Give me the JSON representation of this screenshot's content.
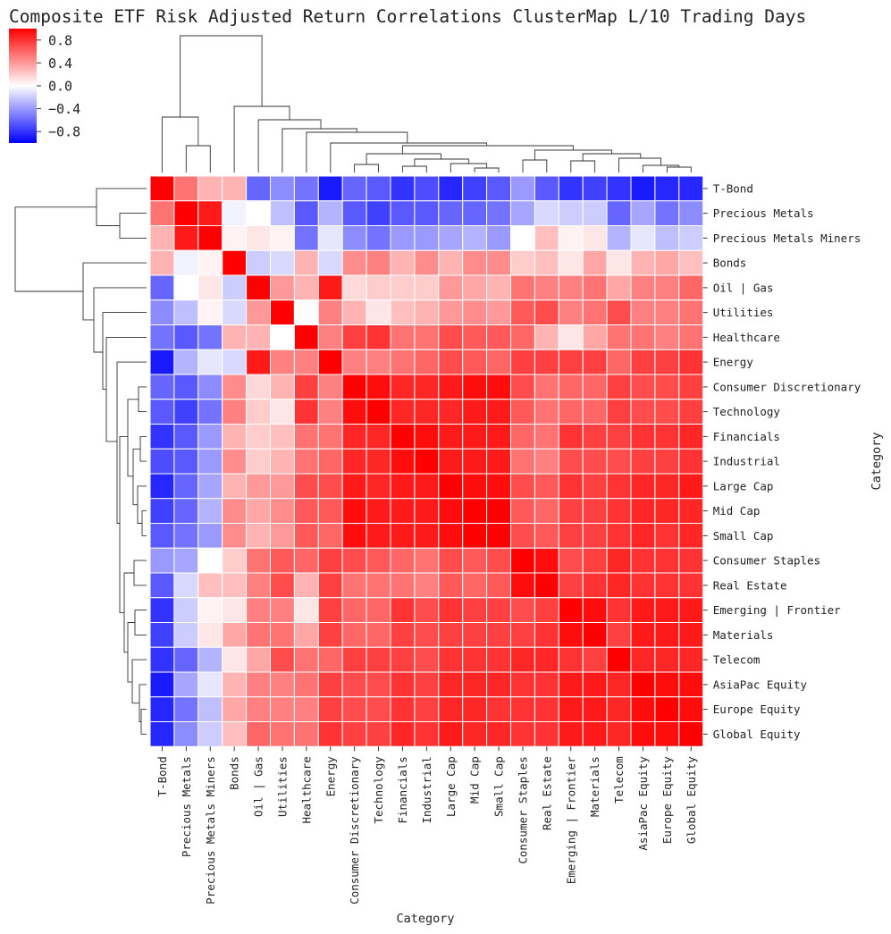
{
  "chart_data": {
    "type": "heatmap",
    "title": "Composite ETF Risk Adjusted Return Correlations ClusterMap L/10 Trading Days",
    "xlabel": "Category",
    "ylabel": "Category",
    "value_range": [
      -1,
      1
    ],
    "colormap": "bwr",
    "colors": {
      "low": "#0000ff",
      "mid": "#ffffff",
      "high": "#ff0000"
    },
    "colorbar_ticks": [
      {
        "value": 0.8,
        "label": "0.8"
      },
      {
        "value": 0.4,
        "label": "0.4"
      },
      {
        "value": 0.0,
        "label": "0.0"
      },
      {
        "value": -0.4,
        "label": "−0.4"
      },
      {
        "value": -0.8,
        "label": "−0.8"
      }
    ],
    "categories": [
      "T-Bond",
      "Precious Metals",
      "Precious Metals Miners",
      "Bonds",
      "Oil | Gas",
      "Utilities",
      "Healthcare",
      "Energy",
      "Consumer Discretionary",
      "Technology",
      "Financials",
      "Industrial",
      "Large Cap",
      "Mid Cap",
      "Small Cap",
      "Consumer Staples",
      "Real Estate",
      "Emerging | Frontier",
      "Materials",
      "Telecom",
      "AsiaPac Equity",
      "Europe Equity",
      "Global Equity"
    ],
    "matrix": [
      [
        1.0,
        0.55,
        0.3,
        0.3,
        -0.6,
        -0.45,
        -0.55,
        -0.9,
        -0.6,
        -0.65,
        -0.8,
        -0.7,
        -0.85,
        -0.75,
        -0.65,
        -0.4,
        -0.65,
        -0.8,
        -0.75,
        -0.8,
        -0.9,
        -0.85,
        -0.85
      ],
      [
        0.55,
        1.0,
        0.9,
        -0.05,
        0.0,
        -0.25,
        -0.65,
        -0.3,
        -0.65,
        -0.75,
        -0.65,
        -0.65,
        -0.6,
        -0.6,
        -0.55,
        -0.35,
        -0.15,
        -0.2,
        -0.2,
        -0.6,
        -0.35,
        -0.55,
        -0.45
      ],
      [
        0.3,
        0.9,
        1.0,
        0.05,
        0.1,
        0.05,
        -0.55,
        -0.1,
        -0.45,
        -0.55,
        -0.4,
        -0.4,
        -0.35,
        -0.3,
        -0.4,
        0.0,
        0.25,
        0.05,
        0.1,
        -0.3,
        -0.1,
        -0.25,
        -0.2
      ],
      [
        0.3,
        -0.05,
        0.05,
        1.0,
        -0.2,
        -0.15,
        0.3,
        -0.15,
        0.45,
        0.5,
        0.3,
        0.45,
        0.3,
        0.45,
        0.45,
        0.2,
        0.25,
        0.1,
        0.35,
        0.1,
        0.3,
        0.35,
        0.25
      ],
      [
        -0.6,
        0.0,
        0.1,
        -0.2,
        1.0,
        0.4,
        0.3,
        0.9,
        0.15,
        0.2,
        0.2,
        0.2,
        0.4,
        0.35,
        0.3,
        0.55,
        0.5,
        0.5,
        0.55,
        0.35,
        0.5,
        0.5,
        0.6
      ],
      [
        -0.45,
        -0.25,
        0.05,
        -0.15,
        0.4,
        1.0,
        0.0,
        0.5,
        0.3,
        0.1,
        0.25,
        0.3,
        0.4,
        0.45,
        0.4,
        0.65,
        0.7,
        0.5,
        0.55,
        0.7,
        0.5,
        0.5,
        0.55
      ],
      [
        -0.55,
        -0.65,
        -0.55,
        0.3,
        0.3,
        0.0,
        1.0,
        0.5,
        0.75,
        0.8,
        0.55,
        0.55,
        0.7,
        0.65,
        0.65,
        0.6,
        0.3,
        0.1,
        0.35,
        0.55,
        0.55,
        0.5,
        0.55
      ],
      [
        -0.9,
        -0.3,
        -0.1,
        -0.15,
        0.9,
        0.5,
        0.5,
        1.0,
        0.5,
        0.5,
        0.55,
        0.6,
        0.7,
        0.65,
        0.6,
        0.75,
        0.75,
        0.75,
        0.75,
        0.6,
        0.75,
        0.75,
        0.8
      ],
      [
        -0.6,
        -0.65,
        -0.45,
        0.45,
        0.15,
        0.3,
        0.75,
        0.5,
        1.0,
        0.95,
        0.85,
        0.85,
        0.9,
        0.95,
        0.95,
        0.7,
        0.55,
        0.6,
        0.6,
        0.75,
        0.7,
        0.7,
        0.75
      ],
      [
        -0.65,
        -0.75,
        -0.55,
        0.5,
        0.2,
        0.1,
        0.8,
        0.5,
        0.95,
        1.0,
        0.85,
        0.85,
        0.85,
        0.9,
        0.9,
        0.65,
        0.55,
        0.6,
        0.6,
        0.75,
        0.7,
        0.7,
        0.75
      ],
      [
        -0.8,
        -0.65,
        -0.4,
        0.3,
        0.2,
        0.25,
        0.55,
        0.55,
        0.85,
        0.85,
        1.0,
        0.95,
        0.9,
        0.9,
        0.9,
        0.6,
        0.55,
        0.8,
        0.75,
        0.75,
        0.8,
        0.8,
        0.85
      ],
      [
        -0.7,
        -0.65,
        -0.4,
        0.45,
        0.2,
        0.3,
        0.55,
        0.6,
        0.85,
        0.85,
        0.95,
        1.0,
        0.9,
        0.9,
        0.9,
        0.55,
        0.5,
        0.7,
        0.7,
        0.7,
        0.75,
        0.75,
        0.8
      ],
      [
        -0.85,
        -0.6,
        -0.35,
        0.3,
        0.4,
        0.4,
        0.7,
        0.7,
        0.9,
        0.85,
        0.9,
        0.9,
        1.0,
        0.95,
        0.95,
        0.7,
        0.65,
        0.8,
        0.75,
        0.8,
        0.85,
        0.85,
        0.9
      ],
      [
        -0.75,
        -0.6,
        -0.3,
        0.45,
        0.35,
        0.45,
        0.65,
        0.65,
        0.95,
        0.9,
        0.9,
        0.9,
        0.95,
        1.0,
        1.0,
        0.65,
        0.6,
        0.75,
        0.75,
        0.8,
        0.85,
        0.85,
        0.85
      ],
      [
        -0.65,
        -0.55,
        -0.4,
        0.45,
        0.3,
        0.4,
        0.65,
        0.6,
        0.95,
        0.9,
        0.9,
        0.9,
        0.95,
        1.0,
        1.0,
        0.7,
        0.65,
        0.75,
        0.75,
        0.8,
        0.85,
        0.8,
        0.85
      ],
      [
        -0.4,
        -0.35,
        0.0,
        0.2,
        0.55,
        0.65,
        0.6,
        0.75,
        0.7,
        0.65,
        0.6,
        0.55,
        0.7,
        0.65,
        0.7,
        1.0,
        0.95,
        0.7,
        0.75,
        0.85,
        0.8,
        0.8,
        0.8
      ],
      [
        -0.65,
        -0.15,
        0.25,
        0.25,
        0.5,
        0.7,
        0.3,
        0.75,
        0.55,
        0.55,
        0.55,
        0.5,
        0.65,
        0.6,
        0.65,
        0.95,
        1.0,
        0.75,
        0.8,
        0.85,
        0.8,
        0.8,
        0.8
      ],
      [
        -0.8,
        -0.2,
        0.05,
        0.1,
        0.5,
        0.5,
        0.1,
        0.75,
        0.6,
        0.6,
        0.8,
        0.7,
        0.8,
        0.75,
        0.75,
        0.7,
        0.75,
        1.0,
        0.95,
        0.8,
        0.9,
        0.9,
        0.9
      ],
      [
        -0.75,
        -0.2,
        0.1,
        0.35,
        0.55,
        0.55,
        0.35,
        0.75,
        0.6,
        0.6,
        0.75,
        0.7,
        0.75,
        0.75,
        0.75,
        0.75,
        0.8,
        0.95,
        1.0,
        0.75,
        0.9,
        0.9,
        0.9
      ],
      [
        -0.8,
        -0.6,
        -0.3,
        0.1,
        0.35,
        0.7,
        0.55,
        0.6,
        0.75,
        0.75,
        0.75,
        0.7,
        0.8,
        0.8,
        0.8,
        0.85,
        0.85,
        0.8,
        0.75,
        1.0,
        0.85,
        0.85,
        0.85
      ],
      [
        -0.9,
        -0.35,
        -0.1,
        0.3,
        0.5,
        0.5,
        0.55,
        0.75,
        0.7,
        0.7,
        0.8,
        0.75,
        0.85,
        0.85,
        0.85,
        0.8,
        0.8,
        0.9,
        0.9,
        0.85,
        1.0,
        0.95,
        0.95
      ],
      [
        -0.85,
        -0.55,
        -0.25,
        0.35,
        0.5,
        0.5,
        0.5,
        0.75,
        0.7,
        0.7,
        0.8,
        0.75,
        0.85,
        0.85,
        0.8,
        0.8,
        0.8,
        0.9,
        0.9,
        0.85,
        0.95,
        1.0,
        0.95
      ],
      [
        -0.85,
        -0.45,
        -0.2,
        0.25,
        0.6,
        0.55,
        0.55,
        0.8,
        0.75,
        0.75,
        0.85,
        0.8,
        0.9,
        0.85,
        0.85,
        0.8,
        0.8,
        0.9,
        0.9,
        0.85,
        0.95,
        0.95,
        1.0
      ]
    ]
  }
}
